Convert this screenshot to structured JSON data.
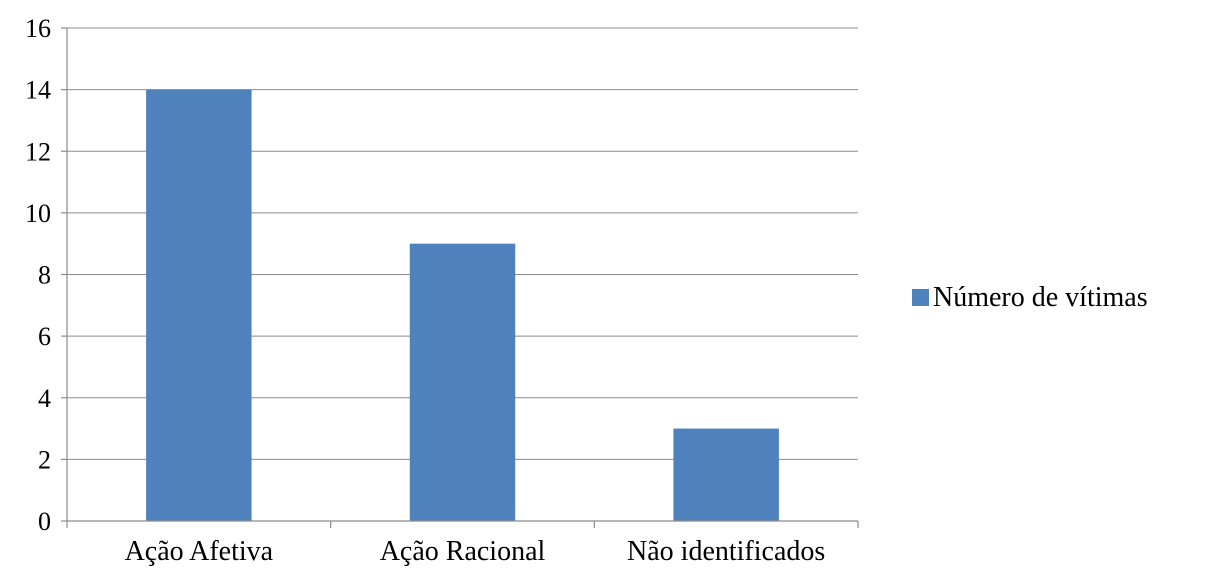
{
  "chart_data": {
    "type": "bar",
    "title": "",
    "xlabel": "",
    "ylabel": "",
    "categories": [
      "Ação Afetiva",
      "Ação Racional",
      "Não identificados"
    ],
    "series": [
      {
        "name": "Número de vítimas",
        "values": [
          14,
          9,
          3
        ],
        "color": "#4f81bd"
      }
    ],
    "ylim": [
      0,
      16
    ],
    "yticks": [
      "0",
      "2",
      "4",
      "6",
      "8",
      "10",
      "12",
      "14",
      "16"
    ],
    "grid": true,
    "legend": "right"
  }
}
